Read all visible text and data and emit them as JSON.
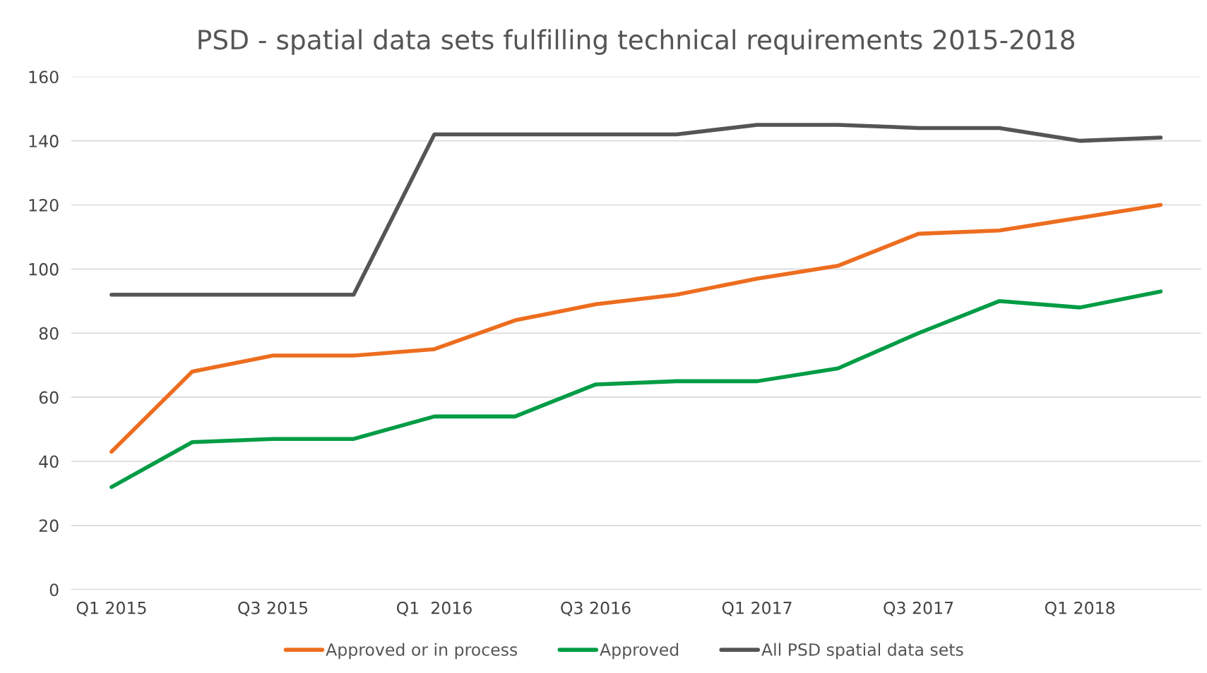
{
  "chart_data": {
    "type": "line",
    "title": "PSD - spatial data sets fulfilling technical requirements 2015-2018",
    "categories": [
      "Q1 2015",
      null,
      "Q3 2015",
      null,
      "Q1  2016",
      null,
      "Q3 2016",
      null,
      "Q1 2017",
      null,
      "Q3 2017",
      null,
      "Q1 2018",
      null
    ],
    "series": [
      {
        "name": "Approved or in process",
        "color": "#ed6d1f",
        "values": [
          43,
          68,
          73,
          73,
          75,
          84,
          89,
          92,
          97,
          101,
          111,
          112,
          116,
          120
        ]
      },
      {
        "name": "Approved",
        "color": "#009c45",
        "values": [
          32,
          46,
          47,
          47,
          54,
          54,
          64,
          65,
          65,
          69,
          80,
          90,
          88,
          93
        ]
      },
      {
        "name": "All PSD spatial data sets",
        "color": "#555555",
        "values": [
          92,
          92,
          92,
          92,
          142,
          142,
          142,
          142,
          145,
          145,
          144,
          144,
          140,
          141
        ]
      }
    ],
    "ylim": [
      0,
      160
    ],
    "yticks": [
      0,
      20,
      40,
      60,
      80,
      100,
      120,
      140,
      160
    ],
    "grid": "y",
    "legend": "bottom",
    "marker": "none",
    "line_style": "solid"
  }
}
